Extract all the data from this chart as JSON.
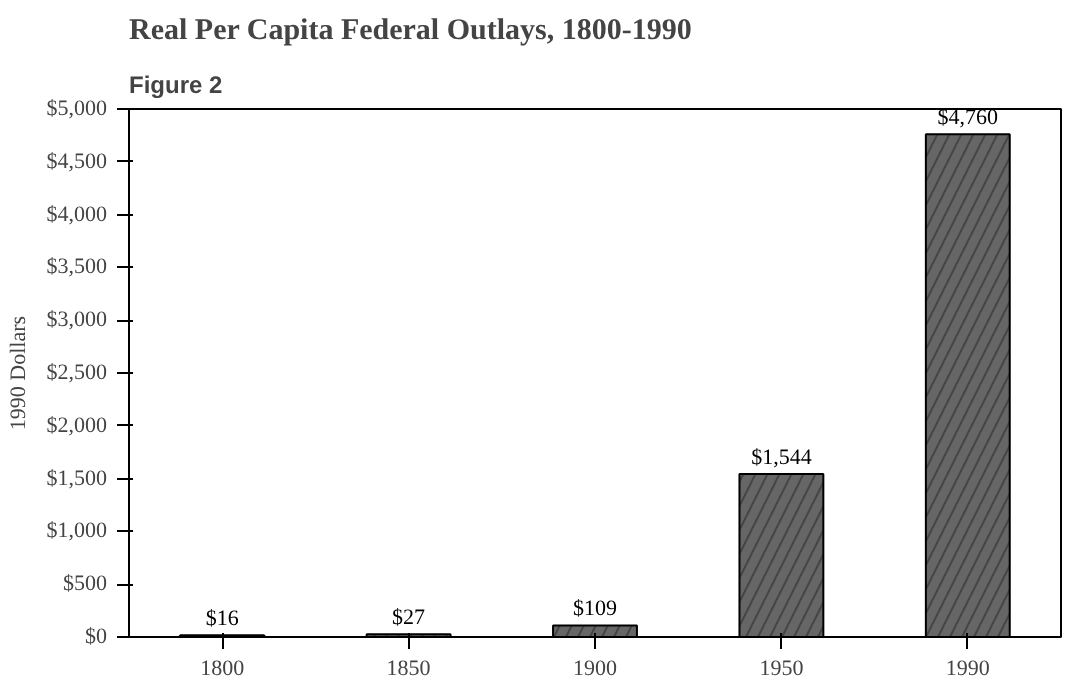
{
  "chart_data": {
    "type": "bar",
    "title": "Real Per Capita Federal Outlays, 1800-1990",
    "annotations": [
      "Figure 2"
    ],
    "ylabel": "1990 Dollars",
    "categories": [
      "1800",
      "1850",
      "1900",
      "1950",
      "1990"
    ],
    "values": [
      16,
      27,
      109,
      1544,
      4760
    ],
    "value_labels": [
      "$16",
      "$27",
      "$109",
      "$1,544",
      "$4,760"
    ],
    "color": "#666666",
    "ylim": [
      0,
      5000
    ],
    "yticks": [
      {
        "value": 0,
        "label": "$0"
      },
      {
        "value": 500,
        "label": "$500"
      },
      {
        "value": 1000,
        "label": "$1,000"
      },
      {
        "value": 1500,
        "label": "$1,500"
      },
      {
        "value": 2000,
        "label": "$2,000"
      },
      {
        "value": 2500,
        "label": "$2,500"
      },
      {
        "value": 3000,
        "label": "$3,000"
      },
      {
        "value": 3500,
        "label": "$3,500"
      },
      {
        "value": 4000,
        "label": "$4,000"
      },
      {
        "value": 4500,
        "label": "$4,500"
      },
      {
        "value": 5000,
        "label": "$5,000"
      }
    ],
    "grid": false
  }
}
